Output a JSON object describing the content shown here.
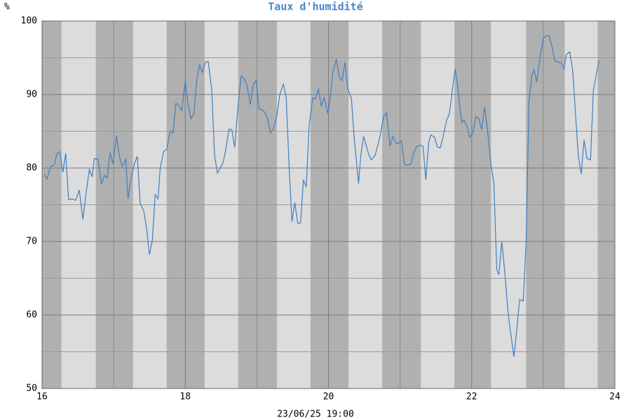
{
  "chart_data": {
    "type": "line",
    "title": "Taux d'humidité",
    "ylabel": "%",
    "xlabel": "23/06/25 19:00",
    "color": "#3f7fbf",
    "xlim": [
      16,
      24
    ],
    "xticks": [
      16,
      18,
      20,
      22,
      24
    ],
    "xminor": [
      17,
      19,
      21,
      23
    ],
    "ylim": [
      50,
      100
    ],
    "yticks": [
      50,
      60,
      70,
      80,
      90,
      100
    ],
    "yminor": [
      55,
      65,
      75,
      85,
      95
    ],
    "grid": true,
    "shaded": [
      [
        16,
        16.27
      ],
      [
        16.75,
        17.27
      ],
      [
        17.74,
        18.27
      ],
      [
        18.74,
        19.28
      ],
      [
        19.75,
        20.28
      ],
      [
        20.75,
        21.29
      ],
      [
        21.76,
        22.27
      ],
      [
        22.76,
        23.3
      ],
      [
        23.76,
        24
      ]
    ],
    "x": [
      16.03,
      16.07,
      16.12,
      16.17,
      16.21,
      16.25,
      16.29,
      16.33,
      16.37,
      16.42,
      16.47,
      16.52,
      16.57,
      16.62,
      16.66,
      16.7,
      16.73,
      16.78,
      16.83,
      16.87,
      16.91,
      16.95,
      16.99,
      17.04,
      17.08,
      17.12,
      17.17,
      17.2,
      17.24,
      17.29,
      17.33,
      17.37,
      17.42,
      17.46,
      17.5,
      17.54,
      17.58,
      17.62,
      17.65,
      17.7,
      17.74,
      17.79,
      17.83,
      17.87,
      17.91,
      17.95,
      18.0,
      18.04,
      18.08,
      18.12,
      18.16,
      18.2,
      18.24,
      18.28,
      18.32,
      18.37,
      18.41,
      18.45,
      18.49,
      18.53,
      18.57,
      18.61,
      18.65,
      18.69,
      18.74,
      18.78,
      18.82,
      18.86,
      18.91,
      18.95,
      18.99,
      19.03,
      19.06,
      19.11,
      19.15,
      19.19,
      19.23,
      19.28,
      19.32,
      19.37,
      19.41,
      19.45,
      19.49,
      19.53,
      19.57,
      19.61,
      19.65,
      19.69,
      19.73,
      19.78,
      19.82,
      19.86,
      19.9,
      19.94,
      19.99,
      20.02,
      20.06,
      20.11,
      20.15,
      20.19,
      20.23,
      20.27,
      20.32,
      20.36,
      20.4,
      20.42,
      20.45,
      20.49,
      20.52,
      20.56,
      20.6,
      20.65,
      20.69,
      20.73,
      20.77,
      20.81,
      20.86,
      20.9,
      20.95,
      20.98,
      21.02,
      21.06,
      21.1,
      21.15,
      21.19,
      21.23,
      21.27,
      21.32,
      21.36,
      21.4,
      21.43,
      21.48,
      21.52,
      21.56,
      21.6,
      21.65,
      21.69,
      21.73,
      21.77,
      21.81,
      21.86,
      21.89,
      21.93,
      21.97,
      22.01,
      22.06,
      22.1,
      22.14,
      22.18,
      22.22,
      22.27,
      22.31,
      22.35,
      22.38,
      22.42,
      22.46,
      22.51,
      22.55,
      22.59,
      22.63,
      22.67,
      22.72,
      22.76,
      22.8,
      22.84,
      22.87,
      22.91,
      22.96,
      23.0,
      23.04,
      23.08,
      23.12,
      23.16,
      23.21,
      23.25,
      23.29,
      23.32,
      23.37,
      23.41,
      23.45,
      23.49,
      23.53,
      23.57,
      23.61,
      23.66,
      23.7,
      23.74,
      23.78
    ],
    "values": [
      79.2,
      78.5,
      80.2,
      80.4,
      82,
      82.2,
      79.4,
      82,
      75.7,
      75.8,
      75.6,
      77,
      73,
      77,
      79.8,
      78.8,
      81.3,
      81.2,
      77.8,
      79,
      78.6,
      82.1,
      80.6,
      84.4,
      81.6,
      80.2,
      81.2,
      75.8,
      78.4,
      80.6,
      81.6,
      75.2,
      74.2,
      71.8,
      68.2,
      70.2,
      76.4,
      75.8,
      80,
      82.3,
      82.5,
      85,
      84.8,
      88.8,
      88.5,
      87.8,
      91.8,
      88.6,
      86.7,
      87.4,
      91.9,
      94,
      93,
      94.4,
      94.5,
      90.6,
      81.6,
      79.3,
      80,
      80.8,
      82.7,
      85.3,
      85.2,
      82.8,
      88.7,
      92.5,
      92.2,
      91.3,
      88.6,
      91.4,
      91.9,
      88,
      88,
      87.6,
      86.7,
      84.8,
      85.3,
      87.2,
      90,
      91.4,
      89.6,
      80.2,
      72.7,
      75.3,
      72.5,
      72.5,
      78.4,
      77.4,
      85.8,
      89.5,
      89.4,
      90.8,
      88.4,
      89.6,
      87.4,
      89.1,
      93,
      94.8,
      92.5,
      91.9,
      94.4,
      90.8,
      89.5,
      84,
      80,
      77.9,
      81.6,
      84.3,
      83.3,
      81.9,
      81.1,
      81.7,
      83.1,
      84.8,
      87,
      87.5,
      83,
      84.3,
      83.3,
      83.4,
      83.7,
      80.5,
      80.4,
      80.5,
      82,
      82.9,
      83.1,
      83,
      78.4,
      83.5,
      84.5,
      84.2,
      82.9,
      82.7,
      84.2,
      86.5,
      87.4,
      90.6,
      93.5,
      90.6,
      86.2,
      86.5,
      85.8,
      84.2,
      84.6,
      87,
      86.7,
      85.2,
      88.3,
      85.3,
      80.4,
      78,
      66.2,
      65.5,
      70,
      66.1,
      60.2,
      57.2,
      54.3,
      58,
      62.1,
      61.9,
      69.7,
      89,
      92.6,
      93.4,
      91.7,
      95.4,
      97.6,
      98,
      98,
      96.6,
      94.6,
      94.4,
      94.3,
      93.5,
      95.4,
      95.8,
      93.4,
      87.4,
      81.6,
      79.2,
      83.8,
      81.3,
      81.1,
      90.6,
      92.7,
      94.6
    ]
  }
}
